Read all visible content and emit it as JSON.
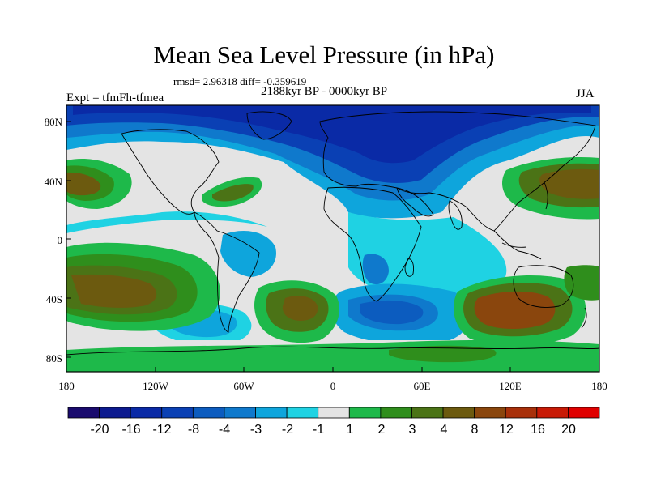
{
  "title": "Mean Sea Level Pressure (in hPa)",
  "stats_text": "rmsd= 2.96318 diff= -0.359619",
  "period": "2188kyr BP - 0000kyr BP",
  "experiment": "Expt = tfmFh-tfmea",
  "season": "JJA",
  "lat_ticks": [
    "80N",
    "40N",
    "0",
    "40S",
    "80S"
  ],
  "lon_ticks": [
    "180",
    "120W",
    "60W",
    "0",
    "60E",
    "120E",
    "180"
  ],
  "colorbar": {
    "labels": [
      "-20",
      "-16",
      "-12",
      "-8",
      "-4",
      "-3",
      "-2",
      "-1",
      "1",
      "2",
      "3",
      "4",
      "8",
      "12",
      "16",
      "20"
    ],
    "colors": [
      "#1a0b6e",
      "#0c1a8f",
      "#0a2aa6",
      "#0a40b4",
      "#0c5cbf",
      "#0f79cc",
      "#0ea5dc",
      "#1fd2e3",
      "#e4e4e4",
      "#1eb94a",
      "#2f8e1c",
      "#4b7316",
      "#6c5a0f",
      "#8a460d",
      "#a8300a",
      "#c81a06",
      "#e00000"
    ]
  },
  "map_colors": {
    "neutral": "#e4e4e4",
    "land_line": "#000000"
  }
}
